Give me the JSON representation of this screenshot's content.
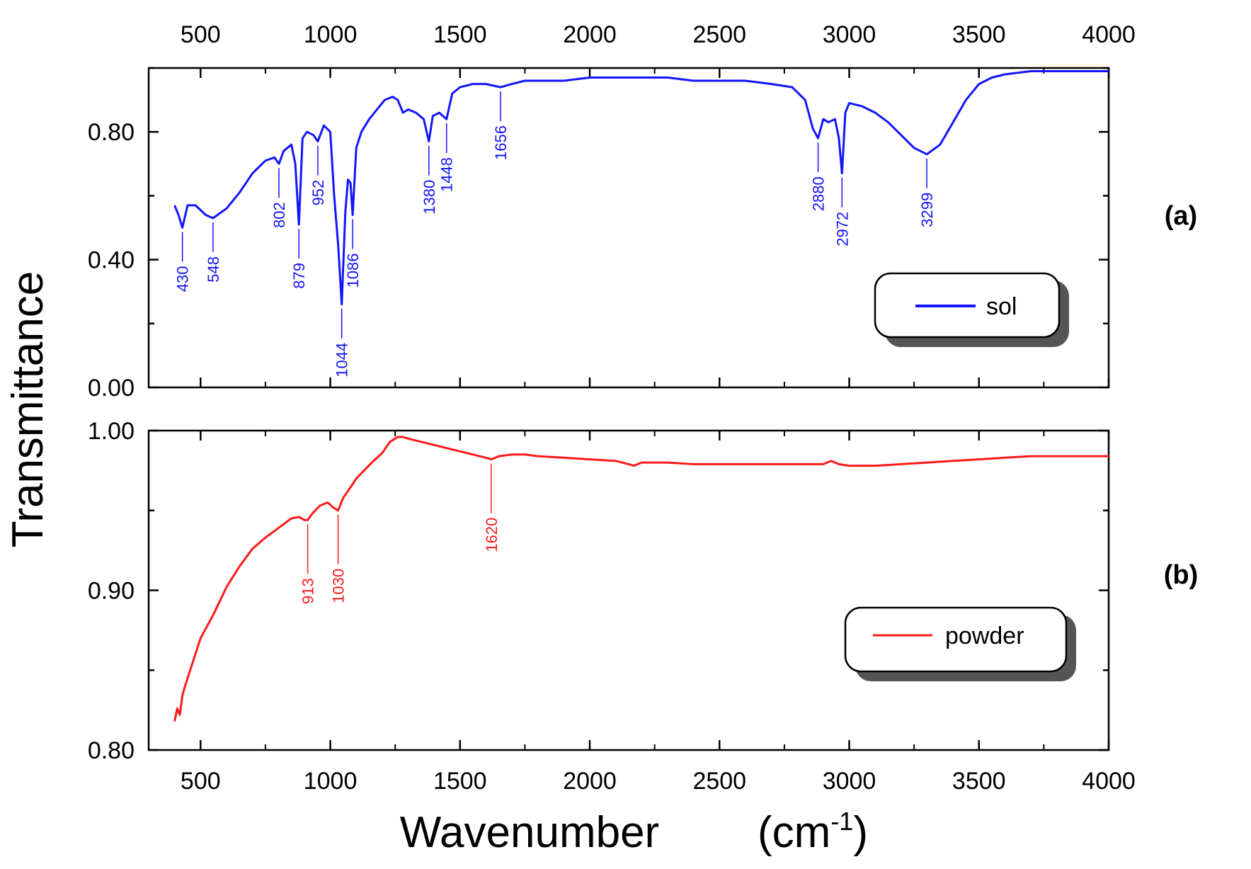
{
  "chart_data": [
    {
      "type": "line",
      "panel_label": "(a)",
      "ylabel": "Transmittance",
      "xlabel": "Wavenumber",
      "xlabel_unit": "(cm-1)",
      "xlim": [
        300,
        4000
      ],
      "ylim": [
        0.0,
        1.0
      ],
      "x_ticks": [
        "500",
        "1000",
        "1500",
        "2000",
        "2500",
        "3000",
        "3500",
        "4000"
      ],
      "y_ticks": [
        "0.00",
        "0.40",
        "0.80"
      ],
      "y_tick_values": [
        0.0,
        0.4,
        0.8
      ],
      "legend": {
        "placement": "lower-right"
      },
      "series": [
        {
          "name": "sol",
          "color": "#1414ff",
          "x": [
            400,
            415,
            430,
            450,
            480,
            520,
            548,
            600,
            650,
            700,
            750,
            785,
            802,
            820,
            850,
            865,
            879,
            893,
            910,
            935,
            952,
            975,
            1000,
            1015,
            1030,
            1044,
            1058,
            1068,
            1078,
            1086,
            1100,
            1120,
            1150,
            1180,
            1210,
            1240,
            1260,
            1280,
            1300,
            1330,
            1360,
            1380,
            1395,
            1420,
            1448,
            1470,
            1500,
            1550,
            1600,
            1656,
            1700,
            1750,
            1800,
            1900,
            2000,
            2100,
            2200,
            2300,
            2400,
            2500,
            2600,
            2700,
            2780,
            2830,
            2860,
            2880,
            2900,
            2920,
            2945,
            2960,
            2972,
            2985,
            3000,
            3050,
            3100,
            3150,
            3200,
            3250,
            3299,
            3350,
            3400,
            3450,
            3500,
            3550,
            3600,
            3700,
            3800,
            3900,
            4000
          ],
          "y": [
            0.57,
            0.54,
            0.5,
            0.57,
            0.57,
            0.54,
            0.53,
            0.56,
            0.61,
            0.67,
            0.71,
            0.72,
            0.7,
            0.74,
            0.76,
            0.7,
            0.51,
            0.78,
            0.8,
            0.79,
            0.77,
            0.82,
            0.8,
            0.6,
            0.45,
            0.26,
            0.55,
            0.65,
            0.64,
            0.54,
            0.75,
            0.8,
            0.84,
            0.87,
            0.9,
            0.91,
            0.9,
            0.86,
            0.87,
            0.86,
            0.84,
            0.77,
            0.85,
            0.86,
            0.84,
            0.92,
            0.94,
            0.95,
            0.95,
            0.94,
            0.95,
            0.96,
            0.96,
            0.96,
            0.97,
            0.97,
            0.97,
            0.97,
            0.96,
            0.96,
            0.96,
            0.95,
            0.94,
            0.9,
            0.81,
            0.78,
            0.84,
            0.83,
            0.84,
            0.78,
            0.67,
            0.86,
            0.89,
            0.88,
            0.86,
            0.83,
            0.79,
            0.75,
            0.73,
            0.76,
            0.83,
            0.9,
            0.95,
            0.97,
            0.98,
            0.99,
            0.99,
            0.99,
            0.99
          ]
        }
      ],
      "annotations": [
        {
          "label": "430",
          "x": 430,
          "side": "below"
        },
        {
          "label": "548",
          "x": 548,
          "side": "below"
        },
        {
          "label": "802",
          "x": 802,
          "side": "below"
        },
        {
          "label": "879",
          "x": 879,
          "side": "below"
        },
        {
          "label": "952",
          "x": 952,
          "side": "below"
        },
        {
          "label": "1044",
          "x": 1044,
          "side": "below"
        },
        {
          "label": "1086",
          "x": 1086,
          "side": "below"
        },
        {
          "label": "1380",
          "x": 1380,
          "side": "below"
        },
        {
          "label": "1448",
          "x": 1448,
          "side": "below"
        },
        {
          "label": "1656",
          "x": 1656,
          "side": "below"
        },
        {
          "label": "2880",
          "x": 2880,
          "side": "below"
        },
        {
          "label": "2972",
          "x": 2972,
          "side": "below"
        },
        {
          "label": "3299",
          "x": 3299,
          "side": "below"
        }
      ]
    },
    {
      "type": "line",
      "panel_label": "(b)",
      "ylabel": "Transmittance",
      "xlabel": "Wavenumber",
      "xlabel_unit": "(cm-1)",
      "xlim": [
        300,
        4000
      ],
      "ylim": [
        0.8,
        1.0
      ],
      "x_ticks": [
        "500",
        "1000",
        "1500",
        "2000",
        "2500",
        "3000",
        "3500",
        "4000"
      ],
      "y_ticks": [
        "0.80",
        "0.90",
        "1.00"
      ],
      "y_tick_values": [
        0.8,
        0.9,
        1.0
      ],
      "legend": {
        "placement": "lower-right"
      },
      "series": [
        {
          "name": "powder",
          "color": "#ff1a1a",
          "x": [
            400,
            410,
            420,
            430,
            440,
            460,
            480,
            500,
            550,
            600,
            650,
            700,
            750,
            800,
            850,
            880,
            900,
            913,
            930,
            960,
            990,
            1010,
            1030,
            1050,
            1080,
            1100,
            1130,
            1160,
            1200,
            1230,
            1260,
            1280,
            1300,
            1350,
            1400,
            1450,
            1500,
            1550,
            1600,
            1620,
            1650,
            1700,
            1750,
            1800,
            1900,
            2000,
            2100,
            2150,
            2170,
            2200,
            2300,
            2400,
            2500,
            2600,
            2700,
            2800,
            2900,
            2930,
            2960,
            3000,
            3100,
            3200,
            3300,
            3400,
            3500,
            3600,
            3700,
            3800,
            3900,
            4000
          ],
          "y": [
            0.818,
            0.826,
            0.822,
            0.834,
            0.84,
            0.85,
            0.86,
            0.87,
            0.885,
            0.902,
            0.915,
            0.926,
            0.933,
            0.939,
            0.945,
            0.946,
            0.944,
            0.944,
            0.948,
            0.953,
            0.955,
            0.952,
            0.95,
            0.958,
            0.965,
            0.97,
            0.975,
            0.98,
            0.986,
            0.993,
            0.996,
            0.996,
            0.995,
            0.993,
            0.991,
            0.989,
            0.987,
            0.985,
            0.983,
            0.982,
            0.984,
            0.985,
            0.985,
            0.984,
            0.983,
            0.982,
            0.981,
            0.979,
            0.978,
            0.98,
            0.98,
            0.979,
            0.979,
            0.979,
            0.979,
            0.979,
            0.979,
            0.981,
            0.979,
            0.978,
            0.978,
            0.979,
            0.98,
            0.981,
            0.982,
            0.983,
            0.984,
            0.984,
            0.984,
            0.984
          ]
        }
      ],
      "annotations": [
        {
          "label": "913",
          "x": 913,
          "side": "below"
        },
        {
          "label": "1030",
          "x": 1030,
          "side": "below"
        },
        {
          "label": "1620",
          "x": 1620,
          "side": "below"
        }
      ]
    }
  ]
}
